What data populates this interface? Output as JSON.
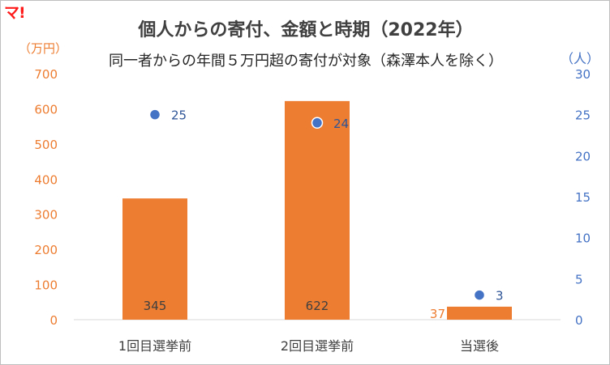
{
  "logo_text": "マ!",
  "chart_data": {
    "type": "bar",
    "title": "個人からの寄付、金額と時期（2022年）",
    "subtitle": "同一者からの年間５万円超の寄付が対象（森澤本人を除く）",
    "categories": [
      "1回目選挙前",
      "2回目選挙前",
      "当選後"
    ],
    "series": [
      {
        "name": "",
        "kind": "bar",
        "axis": "left",
        "values": [
          345,
          622,
          37
        ],
        "color": "#ed7d31"
      },
      {
        "name": "",
        "kind": "scatter",
        "axis": "right",
        "values": [
          25,
          24,
          3
        ],
        "color": "#4472c4"
      }
    ],
    "y_left": {
      "label": "（万円）",
      "ylim": [
        0,
        700
      ],
      "ticks": [
        0,
        100,
        200,
        300,
        400,
        500,
        600,
        700
      ],
      "color": "#ed7d31"
    },
    "y_right": {
      "label": "（人）",
      "ylim": [
        0,
        30
      ],
      "ticks": [
        0,
        5,
        10,
        15,
        20,
        25,
        30
      ],
      "color": "#4472c4"
    },
    "bar_label_color": "#404040",
    "point_label_color": "#2f5597",
    "grid": false,
    "legend": "none"
  }
}
